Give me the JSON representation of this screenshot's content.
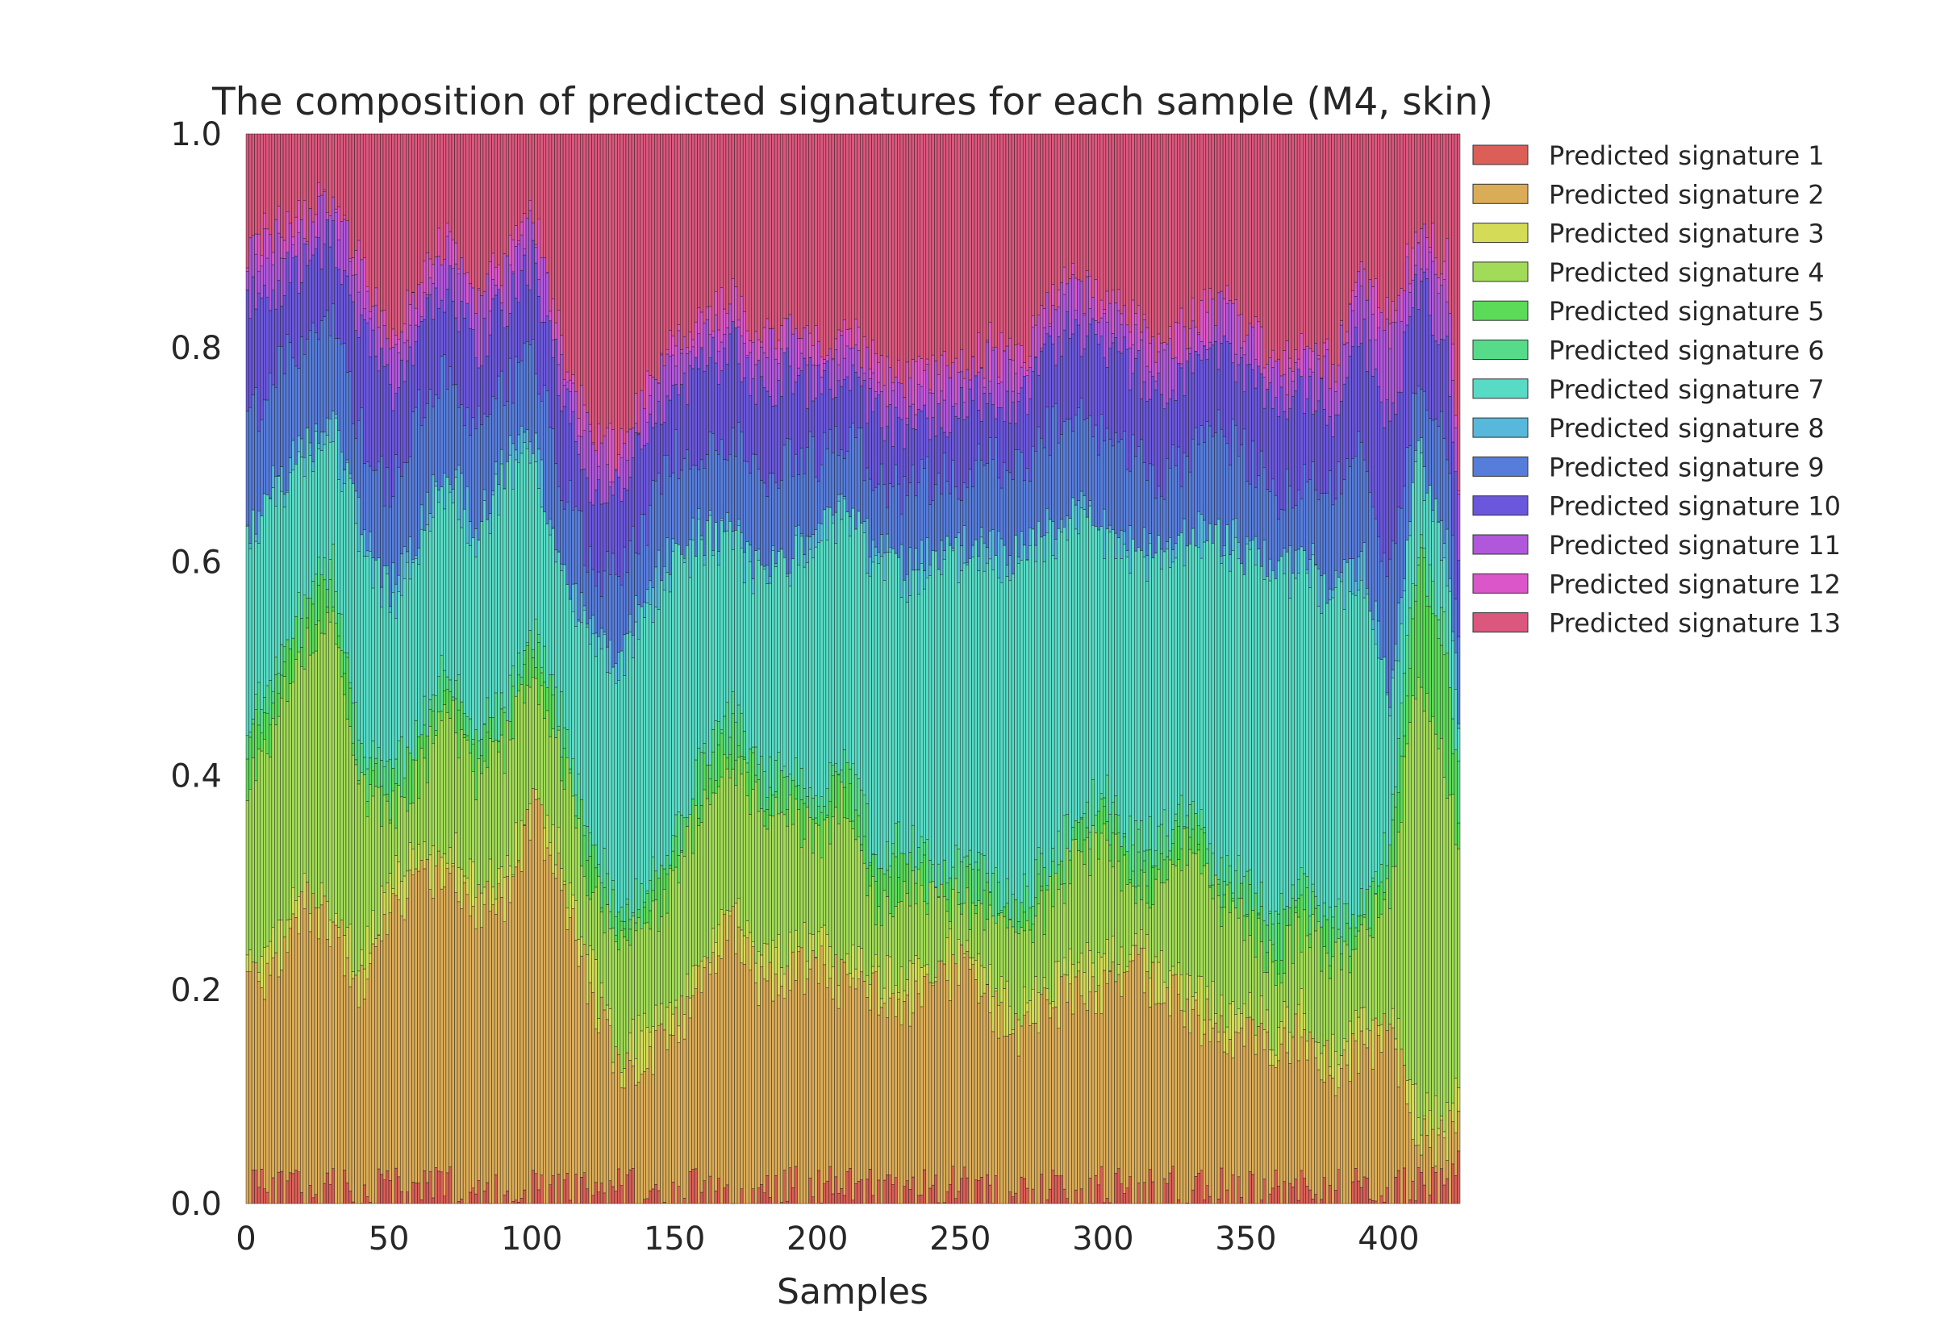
{
  "chart_data": {
    "type": "bar",
    "stacked": true,
    "title": "The composition of predicted signatures for each sample (M4, skin)",
    "xlabel": "Samples",
    "ylabel": "",
    "sample_count": 425,
    "xlim": [
      0,
      425
    ],
    "ylim": [
      0,
      1
    ],
    "xticks": [
      0,
      50,
      100,
      150,
      200,
      250,
      300,
      350,
      400
    ],
    "yticks": [
      0.0,
      0.2,
      0.4,
      0.6,
      0.8,
      1.0
    ],
    "grid": false,
    "legend_position": "outside-right-top",
    "series": [
      {
        "name": "Predicted signature 1",
        "color": "#db5f57"
      },
      {
        "name": "Predicted signature 2",
        "color": "#dbac57"
      },
      {
        "name": "Predicted signature 3",
        "color": "#d3db57"
      },
      {
        "name": "Predicted signature 4",
        "color": "#a1db57"
      },
      {
        "name": "Predicted signature 5",
        "color": "#5bdb57"
      },
      {
        "name": "Predicted signature 6",
        "color": "#57db8a"
      },
      {
        "name": "Predicted signature 7",
        "color": "#57dbc5"
      },
      {
        "name": "Predicted signature 8",
        "color": "#57b8db"
      },
      {
        "name": "Predicted signature 9",
        "color": "#577ddb"
      },
      {
        "name": "Predicted signature 10",
        "color": "#6a57db"
      },
      {
        "name": "Predicted signature 11",
        "color": "#b057db"
      },
      {
        "name": "Predicted signature 12",
        "color": "#db57c9"
      },
      {
        "name": "Predicted signature 13",
        "color": "#db577d"
      }
    ],
    "cumulative_profile": {
      "x": [
        0,
        10,
        20,
        30,
        40,
        50,
        60,
        70,
        80,
        90,
        100,
        110,
        120,
        130,
        140,
        150,
        160,
        170,
        180,
        190,
        200,
        210,
        220,
        230,
        240,
        250,
        260,
        270,
        280,
        290,
        300,
        310,
        320,
        330,
        340,
        350,
        360,
        370,
        380,
        390,
        400,
        410,
        420,
        425
      ],
      "upper_bounds": [
        [
          0.01,
          0.01,
          0.01,
          0.01,
          0.01,
          0.01,
          0.01,
          0.01,
          0.01,
          0.01,
          0.01,
          0.01,
          0.01,
          0.01,
          0.01,
          0.01,
          0.01,
          0.01,
          0.01,
          0.01,
          0.01,
          0.02,
          0.01,
          0.01,
          0.01,
          0.01,
          0.01,
          0.01,
          0.01,
          0.01,
          0.01,
          0.01,
          0.01,
          0.01,
          0.01,
          0.01,
          0.01,
          0.01,
          0.01,
          0.01,
          0.01,
          0.01,
          0.01,
          0.03
        ],
        [
          0.2,
          0.22,
          0.28,
          0.26,
          0.2,
          0.28,
          0.3,
          0.32,
          0.28,
          0.28,
          0.37,
          0.3,
          0.2,
          0.12,
          0.14,
          0.16,
          0.22,
          0.26,
          0.2,
          0.22,
          0.22,
          0.2,
          0.2,
          0.18,
          0.2,
          0.22,
          0.18,
          0.16,
          0.18,
          0.2,
          0.2,
          0.22,
          0.2,
          0.18,
          0.16,
          0.16,
          0.14,
          0.16,
          0.12,
          0.14,
          0.16,
          0.06,
          0.06,
          0.1
        ],
        [
          0.21,
          0.24,
          0.3,
          0.28,
          0.22,
          0.3,
          0.32,
          0.34,
          0.3,
          0.3,
          0.39,
          0.32,
          0.22,
          0.14,
          0.16,
          0.18,
          0.24,
          0.28,
          0.22,
          0.24,
          0.24,
          0.22,
          0.22,
          0.2,
          0.22,
          0.24,
          0.2,
          0.18,
          0.2,
          0.22,
          0.22,
          0.24,
          0.22,
          0.2,
          0.18,
          0.18,
          0.16,
          0.18,
          0.14,
          0.16,
          0.18,
          0.08,
          0.08,
          0.12
        ],
        [
          0.4,
          0.45,
          0.52,
          0.55,
          0.38,
          0.36,
          0.4,
          0.46,
          0.4,
          0.42,
          0.5,
          0.42,
          0.3,
          0.24,
          0.26,
          0.3,
          0.38,
          0.42,
          0.36,
          0.36,
          0.34,
          0.38,
          0.28,
          0.3,
          0.28,
          0.28,
          0.26,
          0.24,
          0.28,
          0.32,
          0.34,
          0.3,
          0.3,
          0.34,
          0.28,
          0.26,
          0.22,
          0.26,
          0.22,
          0.24,
          0.3,
          0.5,
          0.4,
          0.3
        ],
        [
          0.44,
          0.48,
          0.55,
          0.58,
          0.4,
          0.38,
          0.42,
          0.48,
          0.42,
          0.44,
          0.52,
          0.44,
          0.32,
          0.26,
          0.28,
          0.32,
          0.4,
          0.44,
          0.38,
          0.38,
          0.36,
          0.4,
          0.3,
          0.32,
          0.3,
          0.3,
          0.28,
          0.26,
          0.3,
          0.34,
          0.36,
          0.32,
          0.32,
          0.36,
          0.3,
          0.28,
          0.24,
          0.28,
          0.24,
          0.26,
          0.32,
          0.6,
          0.5,
          0.34
        ],
        [
          0.46,
          0.5,
          0.56,
          0.6,
          0.42,
          0.4,
          0.44,
          0.5,
          0.44,
          0.46,
          0.54,
          0.46,
          0.34,
          0.28,
          0.3,
          0.34,
          0.42,
          0.46,
          0.4,
          0.4,
          0.38,
          0.42,
          0.32,
          0.34,
          0.32,
          0.32,
          0.3,
          0.28,
          0.32,
          0.36,
          0.38,
          0.34,
          0.34,
          0.38,
          0.32,
          0.3,
          0.26,
          0.3,
          0.26,
          0.28,
          0.34,
          0.62,
          0.52,
          0.36
        ],
        [
          0.62,
          0.66,
          0.7,
          0.72,
          0.62,
          0.56,
          0.62,
          0.68,
          0.62,
          0.68,
          0.7,
          0.58,
          0.52,
          0.5,
          0.56,
          0.6,
          0.62,
          0.62,
          0.58,
          0.6,
          0.62,
          0.64,
          0.6,
          0.58,
          0.6,
          0.6,
          0.6,
          0.6,
          0.62,
          0.64,
          0.62,
          0.6,
          0.6,
          0.62,
          0.62,
          0.6,
          0.58,
          0.6,
          0.56,
          0.6,
          0.46,
          0.7,
          0.6,
          0.42
        ],
        [
          0.63,
          0.67,
          0.71,
          0.73,
          0.63,
          0.57,
          0.63,
          0.69,
          0.63,
          0.69,
          0.71,
          0.59,
          0.53,
          0.51,
          0.57,
          0.61,
          0.63,
          0.63,
          0.59,
          0.61,
          0.63,
          0.65,
          0.61,
          0.59,
          0.61,
          0.61,
          0.61,
          0.61,
          0.63,
          0.65,
          0.63,
          0.61,
          0.61,
          0.63,
          0.63,
          0.61,
          0.59,
          0.61,
          0.57,
          0.61,
          0.47,
          0.71,
          0.61,
          0.43
        ],
        [
          0.72,
          0.78,
          0.8,
          0.82,
          0.72,
          0.66,
          0.74,
          0.78,
          0.72,
          0.76,
          0.8,
          0.68,
          0.6,
          0.58,
          0.64,
          0.7,
          0.7,
          0.72,
          0.68,
          0.7,
          0.7,
          0.72,
          0.68,
          0.66,
          0.68,
          0.68,
          0.7,
          0.68,
          0.72,
          0.74,
          0.72,
          0.7,
          0.68,
          0.7,
          0.72,
          0.7,
          0.66,
          0.68,
          0.66,
          0.72,
          0.58,
          0.78,
          0.7,
          0.5
        ],
        [
          0.84,
          0.86,
          0.88,
          0.9,
          0.82,
          0.76,
          0.82,
          0.86,
          0.8,
          0.84,
          0.88,
          0.76,
          0.68,
          0.66,
          0.72,
          0.76,
          0.78,
          0.8,
          0.76,
          0.78,
          0.76,
          0.78,
          0.74,
          0.72,
          0.74,
          0.74,
          0.76,
          0.74,
          0.8,
          0.82,
          0.8,
          0.78,
          0.76,
          0.78,
          0.8,
          0.78,
          0.74,
          0.76,
          0.74,
          0.82,
          0.72,
          0.86,
          0.8,
          0.58
        ],
        [
          0.88,
          0.9,
          0.91,
          0.93,
          0.86,
          0.79,
          0.85,
          0.89,
          0.83,
          0.87,
          0.91,
          0.79,
          0.71,
          0.69,
          0.75,
          0.79,
          0.81,
          0.83,
          0.79,
          0.81,
          0.79,
          0.81,
          0.77,
          0.75,
          0.77,
          0.77,
          0.79,
          0.77,
          0.83,
          0.85,
          0.83,
          0.81,
          0.79,
          0.81,
          0.83,
          0.81,
          0.77,
          0.79,
          0.77,
          0.86,
          0.8,
          0.9,
          0.86,
          0.62
        ],
        [
          0.89,
          0.91,
          0.92,
          0.94,
          0.87,
          0.8,
          0.86,
          0.9,
          0.84,
          0.88,
          0.92,
          0.8,
          0.72,
          0.7,
          0.76,
          0.8,
          0.82,
          0.84,
          0.8,
          0.82,
          0.8,
          0.82,
          0.78,
          0.76,
          0.78,
          0.78,
          0.8,
          0.78,
          0.84,
          0.86,
          0.84,
          0.82,
          0.8,
          0.82,
          0.84,
          0.82,
          0.78,
          0.8,
          0.78,
          0.87,
          0.82,
          0.91,
          0.88,
          0.64
        ],
        [
          1,
          1,
          1,
          1,
          1,
          1,
          1,
          1,
          1,
          1,
          1,
          1,
          1,
          1,
          1,
          1,
          1,
          1,
          1,
          1,
          1,
          1,
          1,
          1,
          1,
          1,
          1,
          1,
          1,
          1,
          1,
          1,
          1,
          1,
          1,
          1,
          1,
          1,
          1,
          1,
          1,
          1,
          1,
          1
        ]
      ]
    }
  }
}
